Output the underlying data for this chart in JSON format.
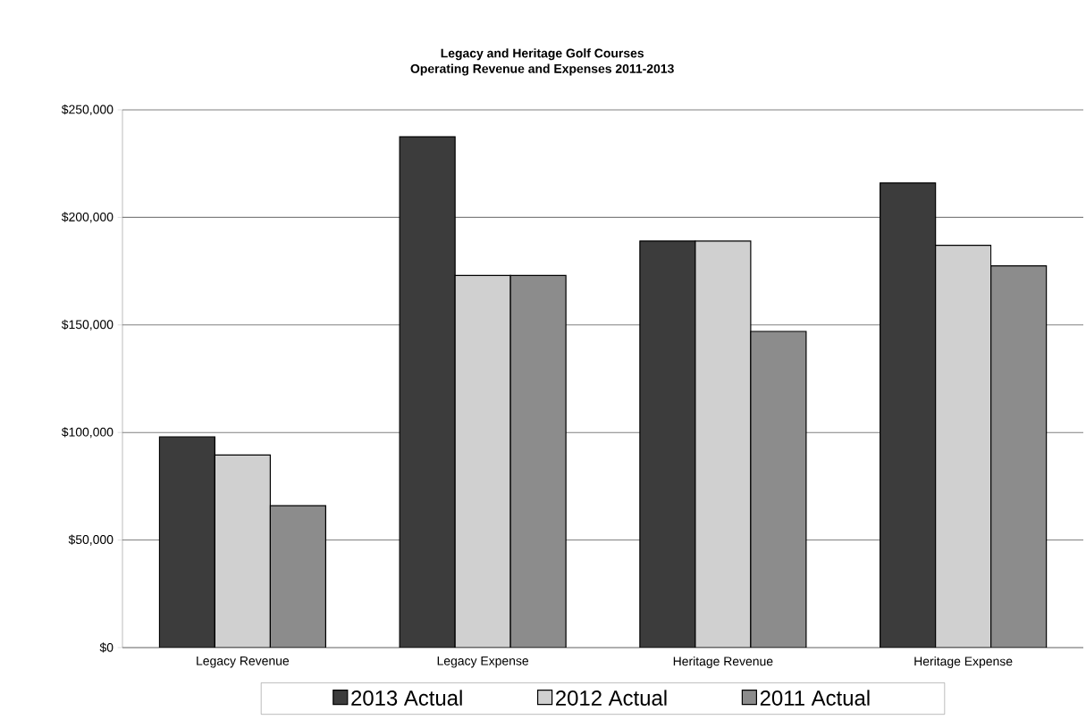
{
  "chart_data": {
    "type": "bar",
    "title": "Legacy and Heritage Golf Courses",
    "subtitle": "Operating Revenue and Expenses 2011-2013",
    "categories": [
      "Legacy Revenue",
      "Legacy Expense",
      "Heritage Revenue",
      "Heritage Expense"
    ],
    "series": [
      {
        "name": "2013 Actual",
        "color": "#3c3c3c",
        "values": [
          98000,
          237500,
          189000,
          216000
        ]
      },
      {
        "name": "2012 Actual",
        "color": "#d0d0d0",
        "values": [
          89500,
          173000,
          189000,
          187000
        ]
      },
      {
        "name": "2011 Actual",
        "color": "#8c8c8c",
        "values": [
          66000,
          173000,
          147000,
          177500
        ]
      }
    ],
    "ylim": [
      0,
      250000
    ],
    "yticks": [
      {
        "value": 0,
        "label": "$0"
      },
      {
        "value": 50000,
        "label": "$50,000"
      },
      {
        "value": 100000,
        "label": "$100,000"
      },
      {
        "value": 150000,
        "label": "$150,000"
      },
      {
        "value": 200000,
        "label": "$200,000"
      },
      {
        "value": 250000,
        "label": "$250,000"
      }
    ],
    "grid": "y",
    "legend": "bottom"
  }
}
